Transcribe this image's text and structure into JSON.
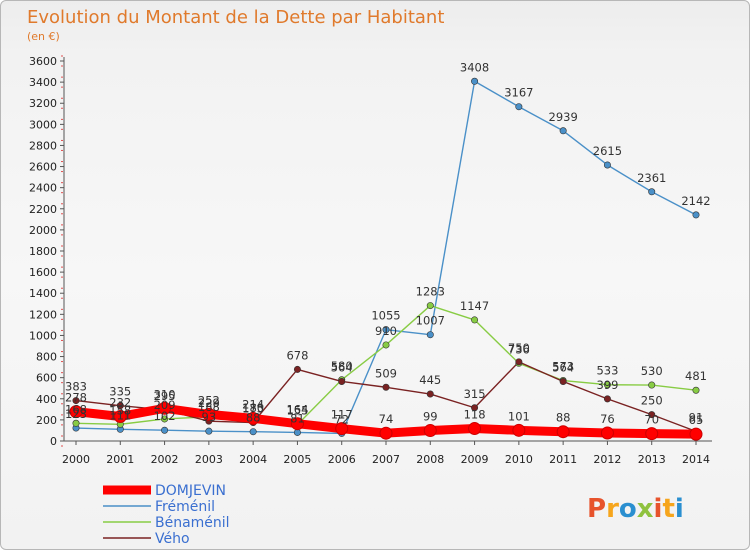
{
  "chart_data": {
    "type": "line",
    "title": "Evolution du Montant de la Dette par Habitant",
    "subtitle": "(en €)",
    "x": [
      "2000",
      "2001",
      "2002",
      "2003",
      "2004",
      "2005",
      "2006",
      "2007",
      "2008",
      "2009",
      "2010",
      "2011",
      "2012",
      "2013",
      "2014"
    ],
    "ylim": [
      0,
      3600
    ],
    "yticks": [
      0,
      200,
      400,
      600,
      800,
      1000,
      1200,
      1400,
      1600,
      1800,
      2000,
      2200,
      2400,
      2600,
      2800,
      3000,
      3200,
      3400,
      3600
    ],
    "grid": false,
    "legend": "bottom-left",
    "series": [
      {
        "name": "DOMJEVIN",
        "color": "#ff0000",
        "values": [
          278,
          232,
          310,
          252,
          214,
          164,
          117,
          74,
          99,
          118,
          101,
          88,
          76,
          70,
          65
        ],
        "labels": [
          "278",
          "232",
          "310",
          "252",
          "214",
          "164",
          "117",
          "74",
          "99",
          "118",
          "101",
          "88",
          "76",
          "70",
          "65"
        ]
      },
      {
        "name": "Fréménil",
        "color": "#4a90c8",
        "values": [
          123,
          111,
          102,
          93,
          88,
          81,
          72,
          1055,
          1007,
          3408,
          3167,
          2939,
          2615,
          2361,
          2142
        ],
        "labels": [
          "123",
          "111",
          "102",
          "93",
          "88",
          "81",
          "72",
          "1055",
          "1007",
          "3408",
          "3167",
          "2939",
          "2615",
          "2361",
          "2142"
        ]
      },
      {
        "name": "Bénaménil",
        "color": "#88cc44",
        "values": [
          168,
          158,
          209,
          229,
          180,
          155,
          580,
          910,
          1283,
          1147,
          736,
          573,
          533,
          530,
          481
        ],
        "labels": [
          "168",
          "158",
          "209",
          "229",
          "180",
          "155",
          "580",
          "910",
          "1283",
          "1147",
          "736",
          "573",
          "533",
          "530",
          "481"
        ]
      },
      {
        "name": "Vého",
        "color": "#7a2222",
        "values": [
          383,
          335,
          295,
          188,
          175,
          678,
          564,
          509,
          445,
          315,
          750,
          564,
          399,
          250,
          91
        ],
        "labels": [
          "383",
          "335",
          "295",
          "188",
          "175",
          "678",
          "564",
          "509",
          "445",
          "315",
          "750",
          "564",
          "399",
          "250",
          "91"
        ]
      }
    ]
  },
  "logo": {
    "text": "Proxiti",
    "letters": [
      "P",
      "r",
      "o",
      "x",
      "i",
      "t",
      "i"
    ],
    "colors": [
      "#e7532c",
      "#f6a51c",
      "#2a8fd0",
      "#8fc23e",
      "#e7532c",
      "#f6a51c",
      "#2a8fd0"
    ]
  }
}
